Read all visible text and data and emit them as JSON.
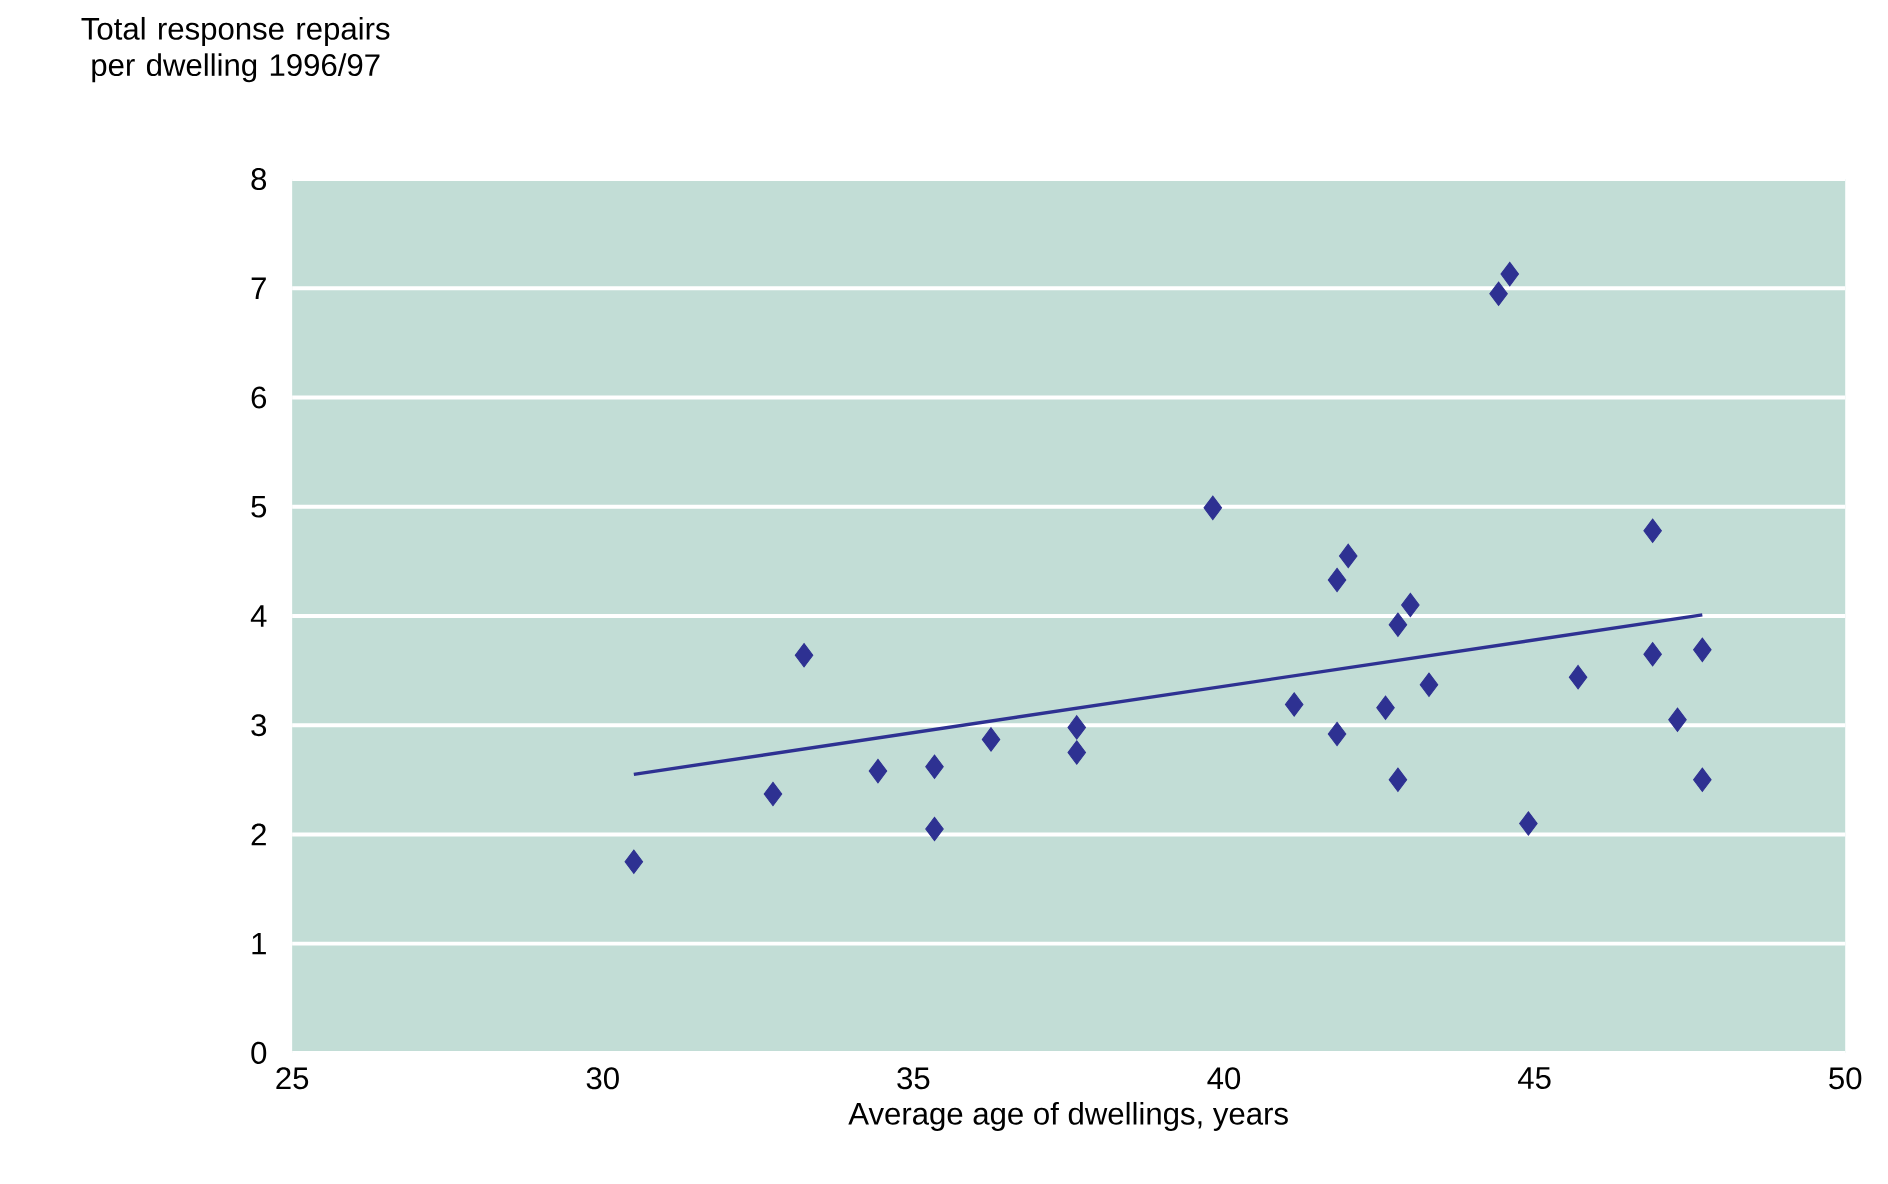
{
  "chart_data": {
    "type": "scatter",
    "ylabel": "Total response repairs per dwelling 1996/97",
    "xlabel": "Average age of dwellings, years",
    "xlim": [
      25,
      50
    ],
    "xticks": [
      25,
      30,
      35,
      40,
      45,
      50
    ],
    "ylim": [
      0,
      8
    ],
    "yticks": [
      0,
      1,
      2,
      3,
      4,
      5,
      6,
      7,
      8
    ],
    "grid": "y",
    "series": [
      {
        "color": "#2e3192",
        "marker": "diamond",
        "x": [
          30.5,
          32.74,
          33.24,
          34.43,
          35.34,
          35.34,
          36.25,
          37.63,
          37.63,
          39.82,
          41.13,
          41.82,
          41.82,
          42.0,
          42.6,
          42.8,
          42.8,
          43.0,
          43.3,
          44.42,
          44.6,
          44.9,
          45.7,
          46.9,
          46.9,
          47.3,
          47.7,
          47.7
        ],
        "values": [
          1.75,
          2.37,
          3.64,
          2.58,
          2.62,
          2.05,
          2.87,
          2.98,
          2.75,
          4.99,
          3.19,
          4.33,
          2.92,
          4.55,
          3.16,
          3.92,
          2.5,
          4.1,
          3.37,
          6.95,
          7.13,
          2.1,
          3.44,
          4.78,
          3.65,
          3.05,
          3.69,
          2.5
        ]
      },
      {
        "type": "line",
        "color": "#2e3192",
        "marker": "none",
        "x": [
          30.5,
          47.7
        ],
        "values": [
          2.55,
          4.01
        ]
      }
    ]
  }
}
